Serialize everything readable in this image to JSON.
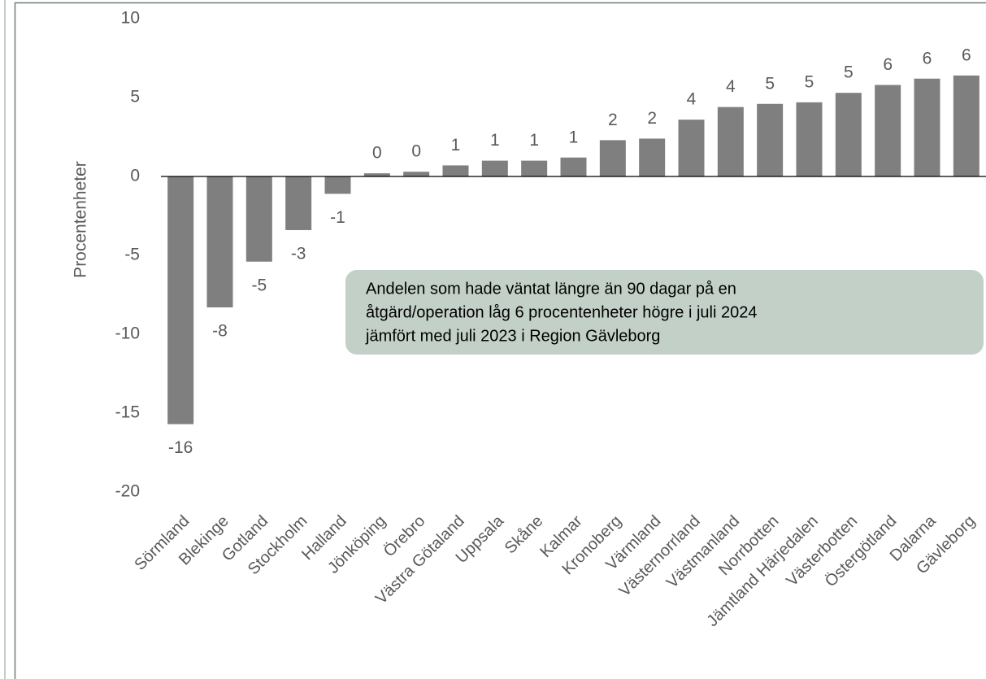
{
  "chart_data": {
    "type": "bar",
    "y_label": "Procentenheter",
    "categories": [
      "Sörmland",
      "Blekinge",
      "Gotland",
      "Stockholm",
      "Halland",
      "Jönköping",
      "Örebro",
      "Västra Götaland",
      "Uppsala",
      "Skåne",
      "Kalmar",
      "Kronoberg",
      "Värmland",
      "Västernorrland",
      "Västmanland",
      "Norrbotten",
      "Jämtland Härjedalen",
      "Västerbotten",
      "Östergötland",
      "Dalarna",
      "Gävleborg"
    ],
    "values": [
      -15.7,
      -8.3,
      -5.4,
      -3.4,
      -1.1,
      0.2,
      0.3,
      0.7,
      1.0,
      1.0,
      1.2,
      2.3,
      2.4,
      3.6,
      4.4,
      4.6,
      4.7,
      5.3,
      5.8,
      6.2,
      6.4
    ],
    "value_labels": [
      "-16",
      "-8",
      "-5",
      "-3",
      "-1",
      "0",
      "0",
      "1",
      "1",
      "1",
      "1",
      "2",
      "2",
      "4",
      "4",
      "5",
      "5",
      "5",
      "6",
      "6",
      "6"
    ],
    "color": "#7f7f7f",
    "ylim": [
      -20,
      10
    ],
    "yticks": [
      -20,
      -15,
      -10,
      -5,
      0,
      5,
      10
    ],
    "grid": false,
    "annotation": [
      "Andelen som hade väntat längre än 90 dagar på en",
      "åtgärd/operation låg 6 procentenheter högre i juli 2024",
      "jämfört med juli 2023 i Region Gävleborg"
    ]
  }
}
